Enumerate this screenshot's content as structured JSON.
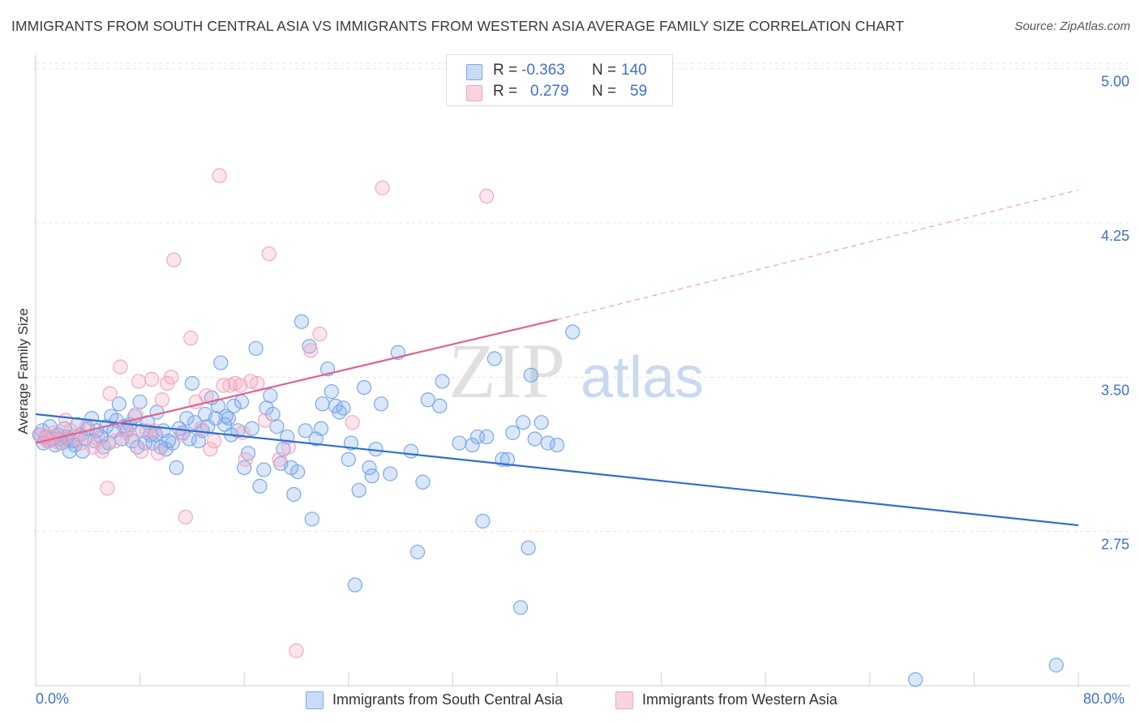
{
  "header": {
    "title": "IMMIGRANTS FROM SOUTH CENTRAL ASIA VS IMMIGRANTS FROM WESTERN ASIA AVERAGE FAMILY SIZE CORRELATION CHART",
    "source": "Source: ZipAtlas.com"
  },
  "watermark": {
    "zip": "ZIP",
    "atlas": "atlas"
  },
  "stats_legend": [
    {
      "r_label": "R =",
      "r_value": "-0.363",
      "n_label": "N =",
      "n_value": "140",
      "color": "#7aa8ea"
    },
    {
      "r_label": "R =",
      "r_value": "0.279",
      "n_label": "N =",
      "n_value": "59",
      "color": "#f3a6c0"
    }
  ],
  "bottom_legend": [
    {
      "label": "Immigrants from South Central Asia",
      "color": "#7aa8ea"
    },
    {
      "label": "Immigrants from Western Asia",
      "color": "#f3a6c0"
    }
  ],
  "chart_data": {
    "type": "scatter",
    "title": "IMMIGRANTS FROM SOUTH CENTRAL ASIA VS IMMIGRANTS FROM WESTERN ASIA AVERAGE FAMILY SIZE CORRELATION CHART",
    "ylabel": "Average Family Size",
    "xlabel": "",
    "xlim": [
      0,
      80
    ],
    "ylim": [
      2.0,
      5.05
    ],
    "x_tick_labels": [
      "0.0%",
      "80.0%"
    ],
    "y_ticks": [
      2.75,
      3.5,
      4.25,
      5.0
    ],
    "y_tick_labels": [
      "2.75",
      "3.50",
      "4.25",
      "5.00"
    ],
    "y_axis_position": "right",
    "grid": true,
    "series": [
      {
        "name": "Immigrants from South Central Asia",
        "color": "#7aa8ea",
        "line_color": "#2d6fd1",
        "trend": {
          "x": [
            0,
            80
          ],
          "y": [
            3.32,
            2.78
          ],
          "dashed_extension": false
        },
        "points": [
          [
            0.3,
            3.22
          ],
          [
            0.5,
            3.24
          ],
          [
            0.6,
            3.18
          ],
          [
            0.8,
            3.21
          ],
          [
            1.0,
            3.19
          ],
          [
            1.1,
            3.26
          ],
          [
            1.3,
            3.2
          ],
          [
            1.5,
            3.17
          ],
          [
            1.7,
            3.22
          ],
          [
            1.9,
            3.2
          ],
          [
            2.0,
            3.18
          ],
          [
            2.2,
            3.25
          ],
          [
            2.4,
            3.21
          ],
          [
            2.6,
            3.14
          ],
          [
            2.8,
            3.19
          ],
          [
            3.0,
            3.17
          ],
          [
            3.2,
            3.27
          ],
          [
            3.4,
            3.22
          ],
          [
            3.6,
            3.14
          ],
          [
            3.8,
            3.2
          ],
          [
            4.0,
            3.25
          ],
          [
            4.3,
            3.3
          ],
          [
            4.5,
            3.19
          ],
          [
            4.7,
            3.24
          ],
          [
            5.0,
            3.21
          ],
          [
            5.2,
            3.16
          ],
          [
            5.4,
            3.26
          ],
          [
            5.6,
            3.18
          ],
          [
            5.8,
            3.31
          ],
          [
            6.0,
            3.24
          ],
          [
            6.2,
            3.29
          ],
          [
            6.4,
            3.37
          ],
          [
            6.6,
            3.2
          ],
          [
            6.8,
            3.26
          ],
          [
            7.0,
            3.24
          ],
          [
            7.2,
            3.27
          ],
          [
            7.4,
            3.19
          ],
          [
            7.6,
            3.31
          ],
          [
            7.8,
            3.16
          ],
          [
            8.0,
            3.38
          ],
          [
            8.2,
            3.24
          ],
          [
            8.4,
            3.18
          ],
          [
            8.6,
            3.28
          ],
          [
            8.8,
            3.22
          ],
          [
            9.0,
            3.18
          ],
          [
            9.3,
            3.33
          ],
          [
            9.6,
            3.16
          ],
          [
            9.8,
            3.24
          ],
          [
            10.0,
            3.15
          ],
          [
            10.2,
            3.19
          ],
          [
            10.5,
            3.18
          ],
          [
            10.8,
            3.06
          ],
          [
            11.0,
            3.25
          ],
          [
            11.3,
            3.23
          ],
          [
            11.6,
            3.3
          ],
          [
            11.8,
            3.2
          ],
          [
            12.0,
            3.47
          ],
          [
            12.2,
            3.28
          ],
          [
            12.5,
            3.19
          ],
          [
            12.8,
            3.24
          ],
          [
            13.0,
            3.32
          ],
          [
            13.2,
            3.26
          ],
          [
            13.5,
            3.4
          ],
          [
            13.8,
            3.3
          ],
          [
            14.0,
            3.36
          ],
          [
            14.2,
            3.57
          ],
          [
            14.5,
            3.27
          ],
          [
            14.8,
            3.3
          ],
          [
            15.0,
            3.22
          ],
          [
            15.2,
            3.36
          ],
          [
            15.5,
            3.24
          ],
          [
            15.8,
            3.38
          ],
          [
            16.0,
            3.06
          ],
          [
            16.3,
            3.13
          ],
          [
            16.6,
            3.25
          ],
          [
            16.9,
            3.64
          ],
          [
            17.2,
            2.97
          ],
          [
            17.5,
            3.05
          ],
          [
            17.7,
            3.35
          ],
          [
            18.0,
            3.41
          ],
          [
            18.2,
            3.32
          ],
          [
            18.5,
            3.26
          ],
          [
            18.8,
            3.08
          ],
          [
            19.0,
            3.15
          ],
          [
            19.3,
            3.21
          ],
          [
            19.6,
            3.06
          ],
          [
            19.8,
            2.93
          ],
          [
            20.1,
            3.04
          ],
          [
            20.4,
            3.77
          ],
          [
            20.7,
            3.24
          ],
          [
            21.0,
            3.65
          ],
          [
            21.2,
            2.81
          ],
          [
            21.5,
            3.2
          ],
          [
            22.0,
            3.37
          ],
          [
            22.4,
            3.54
          ],
          [
            22.7,
            3.43
          ],
          [
            23.0,
            3.36
          ],
          [
            23.3,
            3.33
          ],
          [
            23.6,
            3.35
          ],
          [
            24.0,
            3.1
          ],
          [
            24.2,
            3.18
          ],
          [
            24.5,
            2.49
          ],
          [
            24.8,
            2.95
          ],
          [
            25.2,
            3.45
          ],
          [
            25.6,
            3.06
          ],
          [
            25.8,
            3.02
          ],
          [
            26.5,
            3.37
          ],
          [
            27.2,
            3.03
          ],
          [
            27.8,
            3.62
          ],
          [
            28.8,
            3.14
          ],
          [
            29.3,
            2.65
          ],
          [
            29.7,
            2.99
          ],
          [
            30.1,
            3.39
          ],
          [
            31.2,
            3.48
          ],
          [
            32.5,
            3.18
          ],
          [
            33.5,
            3.17
          ],
          [
            33.9,
            3.21
          ],
          [
            34.3,
            2.8
          ],
          [
            35.2,
            3.59
          ],
          [
            35.8,
            3.1
          ],
          [
            36.2,
            3.1
          ],
          [
            36.6,
            3.23
          ],
          [
            37.2,
            2.38
          ],
          [
            37.4,
            3.28
          ],
          [
            37.8,
            2.67
          ],
          [
            38.0,
            3.51
          ],
          [
            38.3,
            3.2
          ],
          [
            38.8,
            3.28
          ],
          [
            40.0,
            3.17
          ],
          [
            41.2,
            3.72
          ],
          [
            67.5,
            2.03
          ],
          [
            78.3,
            2.1
          ],
          [
            2.5,
            3.2
          ],
          [
            9.2,
            3.22
          ],
          [
            14.6,
            3.31
          ],
          [
            21.9,
            3.25
          ],
          [
            26.1,
            3.15
          ],
          [
            31.0,
            3.36
          ],
          [
            34.6,
            3.21
          ],
          [
            39.3,
            3.18
          ]
        ]
      },
      {
        "name": "Immigrants from Western Asia",
        "color": "#f3a6c0",
        "line_color": "#e0628f",
        "trend": {
          "x": [
            0,
            40
          ],
          "y": [
            3.18,
            3.78
          ],
          "dashed_extension_to": [
            80,
            4.41
          ]
        },
        "points": [
          [
            0.4,
            3.22
          ],
          [
            0.7,
            3.2
          ],
          [
            0.9,
            3.19
          ],
          [
            1.2,
            3.21
          ],
          [
            1.4,
            3.23
          ],
          [
            1.8,
            3.18
          ],
          [
            2.1,
            3.2
          ],
          [
            2.3,
            3.29
          ],
          [
            2.7,
            3.24
          ],
          [
            3.1,
            3.21
          ],
          [
            3.5,
            3.18
          ],
          [
            3.9,
            3.26
          ],
          [
            4.4,
            3.16
          ],
          [
            4.8,
            3.2
          ],
          [
            5.1,
            3.14
          ],
          [
            5.5,
            2.96
          ],
          [
            5.7,
            3.42
          ],
          [
            6.1,
            3.19
          ],
          [
            6.5,
            3.55
          ],
          [
            6.9,
            3.24
          ],
          [
            7.3,
            3.21
          ],
          [
            7.7,
            3.32
          ],
          [
            7.9,
            3.48
          ],
          [
            8.1,
            3.14
          ],
          [
            8.5,
            3.24
          ],
          [
            8.9,
            3.49
          ],
          [
            9.1,
            3.24
          ],
          [
            9.4,
            3.13
          ],
          [
            9.7,
            3.39
          ],
          [
            10.1,
            3.47
          ],
          [
            10.4,
            3.5
          ],
          [
            10.6,
            4.07
          ],
          [
            11.2,
            3.22
          ],
          [
            11.5,
            2.82
          ],
          [
            11.9,
            3.69
          ],
          [
            12.3,
            3.38
          ],
          [
            12.7,
            3.25
          ],
          [
            13.1,
            3.41
          ],
          [
            13.4,
            3.15
          ],
          [
            13.7,
            3.19
          ],
          [
            14.1,
            4.48
          ],
          [
            14.4,
            3.46
          ],
          [
            14.9,
            3.46
          ],
          [
            15.3,
            3.47
          ],
          [
            15.7,
            3.46
          ],
          [
            15.9,
            3.23
          ],
          [
            16.1,
            3.1
          ],
          [
            16.5,
            3.48
          ],
          [
            17.0,
            3.47
          ],
          [
            17.6,
            3.29
          ],
          [
            17.9,
            4.1
          ],
          [
            18.7,
            3.1
          ],
          [
            19.4,
            3.16
          ],
          [
            20.0,
            2.17
          ],
          [
            21.1,
            3.63
          ],
          [
            21.8,
            3.71
          ],
          [
            24.3,
            3.28
          ],
          [
            26.6,
            4.42
          ],
          [
            34.6,
            4.38
          ]
        ]
      }
    ]
  }
}
